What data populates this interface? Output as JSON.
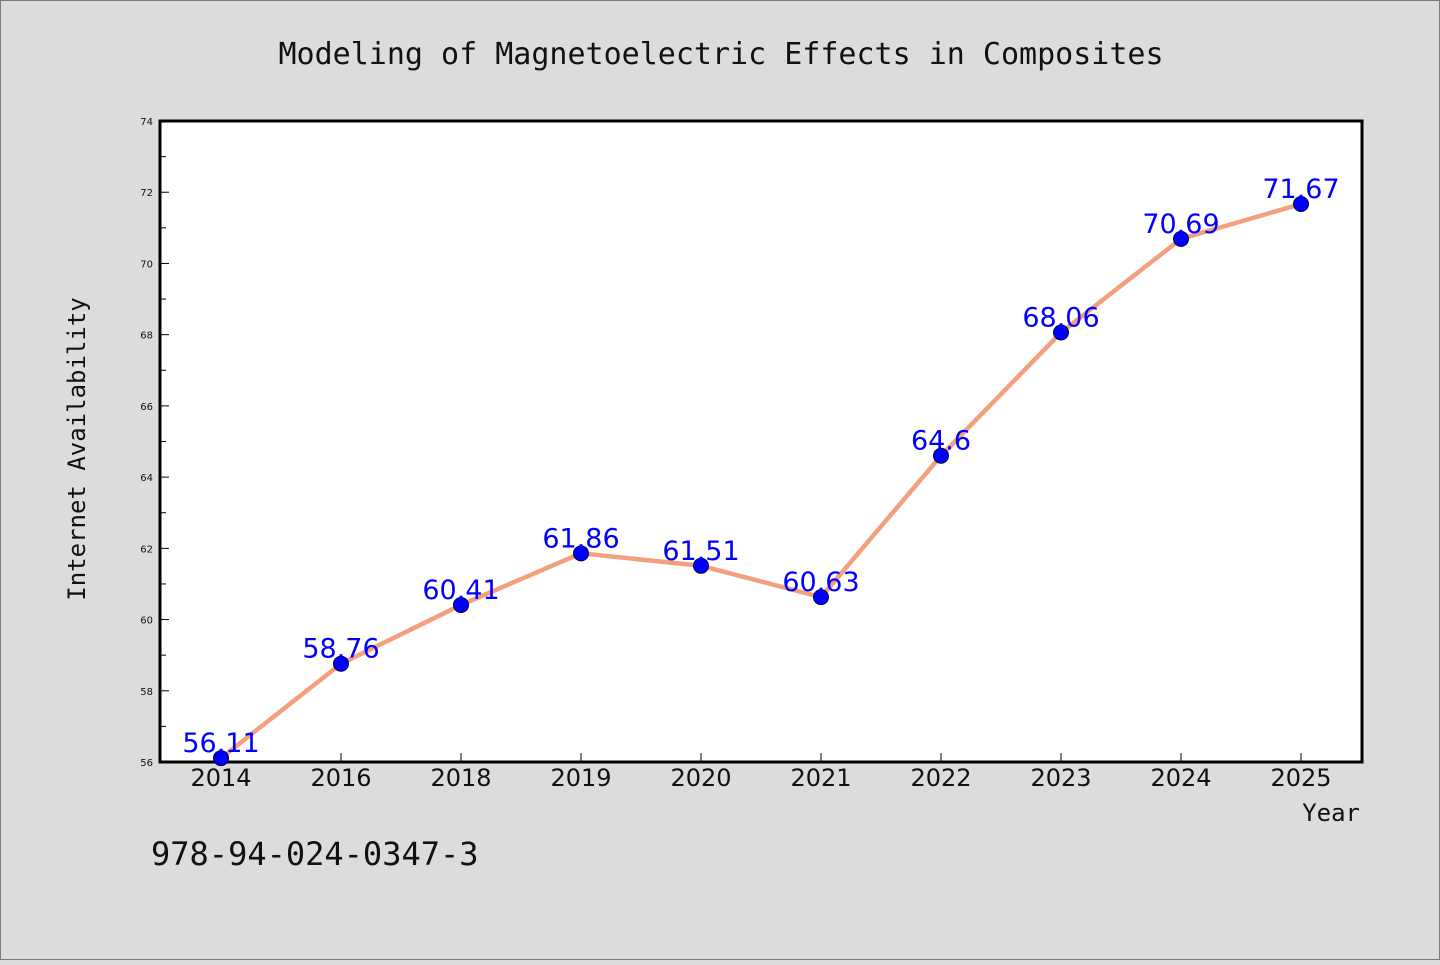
{
  "chart_data": {
    "type": "line",
    "title": "Modeling of Magnetoelectric Effects in Composites",
    "xlabel": "Year",
    "ylabel": "Internet Availability",
    "categories": [
      "2014",
      "2016",
      "2018",
      "2019",
      "2020",
      "2021",
      "2022",
      "2023",
      "2024",
      "2025"
    ],
    "series": [
      {
        "values": [
          56.11,
          58.76,
          60.41,
          61.86,
          61.51,
          60.63,
          64.6,
          68.06,
          70.69,
          71.67
        ],
        "labels": [
          "56.11",
          "58.76",
          "60.41",
          "61.86",
          "61.51",
          "60.63",
          "64.6",
          "68.06",
          "70.69",
          "71.67"
        ],
        "line_color": "#f4a07e",
        "marker_color": "#0000ff"
      }
    ],
    "ylim": [
      56,
      74
    ],
    "yticks": [
      "56",
      "58",
      "60",
      "62",
      "64",
      "66",
      "68",
      "70",
      "72",
      "74"
    ],
    "grid": false,
    "legend": "none"
  },
  "footer_text": "978-94-024-0347-3",
  "colors": {
    "background": "#dcdcdc",
    "plot_background": "#ffffff",
    "line": "#f4a07e",
    "marker": "#0000ff",
    "data_label": "#0000ff"
  }
}
